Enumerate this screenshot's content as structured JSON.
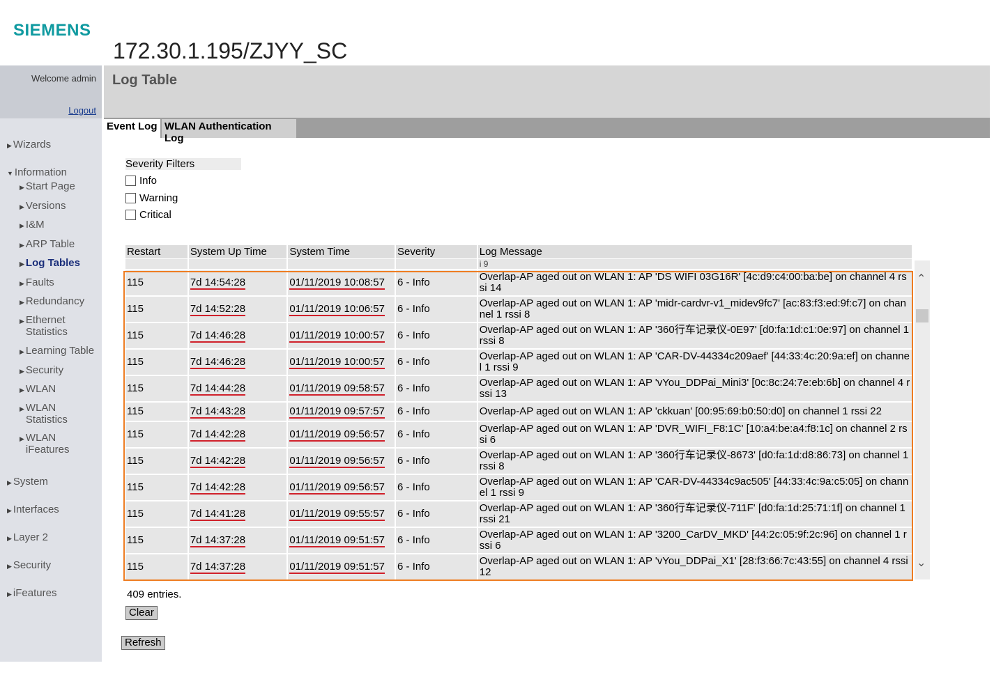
{
  "logo": "SIEMENS",
  "title": "172.30.1.195/ZJYY_SC",
  "sidebar": {
    "welcome": "Welcome admin",
    "logout": "Logout",
    "top": [
      {
        "label": "Wizards"
      },
      {
        "label": "Information"
      },
      {
        "label": "System"
      },
      {
        "label": "Interfaces"
      },
      {
        "label": "Layer 2"
      },
      {
        "label": "Security"
      },
      {
        "label": "iFeatures"
      }
    ],
    "info_items": [
      {
        "label": "Start Page"
      },
      {
        "label": "Versions"
      },
      {
        "label": "I&M"
      },
      {
        "label": "ARP Table"
      },
      {
        "label": "Log Tables"
      },
      {
        "label": "Faults"
      },
      {
        "label": "Redundancy"
      },
      {
        "label": "Ethernet Statistics"
      },
      {
        "label": "Learning Table"
      },
      {
        "label": "Security"
      },
      {
        "label": "WLAN"
      },
      {
        "label": "WLAN Statistics"
      },
      {
        "label": "WLAN iFeatures"
      }
    ]
  },
  "page_title": "Log Table",
  "tabs": [
    {
      "label": "Event Log"
    },
    {
      "label": "WLAN Authentication Log"
    }
  ],
  "filters": {
    "label": "Severity Filters",
    "options": [
      {
        "label": "Info",
        "checked": false
      },
      {
        "label": "Warning",
        "checked": false
      },
      {
        "label": "Critical",
        "checked": false
      }
    ]
  },
  "table": {
    "headers": [
      "Restart",
      "System Up Time",
      "System Time",
      "Severity",
      "Log Message"
    ],
    "partial_row": {
      "message": "i 9"
    },
    "rows": [
      {
        "restart": "115",
        "uptime": "7d 14:54:28",
        "time": "01/11/2019 10:08:57",
        "severity": "6 - Info",
        "message": "Overlap-AP aged out on WLAN 1: AP 'DS WIFI 03G16R' [4c:d9:c4:00:ba:be] on channel 4 rssi 14"
      },
      {
        "restart": "115",
        "uptime": "7d 14:52:28",
        "time": "01/11/2019 10:06:57",
        "severity": "6 - Info",
        "message": "Overlap-AP aged out on WLAN 1: AP 'midr-cardvr-v1_midev9fc7' [ac:83:f3:ed:9f:c7] on channel 1 rssi 8"
      },
      {
        "restart": "115",
        "uptime": "7d 14:46:28",
        "time": "01/11/2019 10:00:57",
        "severity": "6 - Info",
        "message": "Overlap-AP aged out on WLAN 1: AP '360行车记录仪-0E97' [d0:fa:1d:c1:0e:97] on channel 1 rssi 8"
      },
      {
        "restart": "115",
        "uptime": "7d 14:46:28",
        "time": "01/11/2019 10:00:57",
        "severity": "6 - Info",
        "message": "Overlap-AP aged out on WLAN 1: AP 'CAR-DV-44334c209aef' [44:33:4c:20:9a:ef] on channel 1 rssi 9"
      },
      {
        "restart": "115",
        "uptime": "7d 14:44:28",
        "time": "01/11/2019 09:58:57",
        "severity": "6 - Info",
        "message": "Overlap-AP aged out on WLAN 1: AP 'vYou_DDPai_Mini3' [0c:8c:24:7e:eb:6b] on channel 4 rssi 13"
      },
      {
        "restart": "115",
        "uptime": "7d 14:43:28",
        "time": "01/11/2019 09:57:57",
        "severity": "6 - Info",
        "message": "Overlap-AP aged out on WLAN 1: AP 'ckkuan' [00:95:69:b0:50:d0] on channel 1 rssi 22"
      },
      {
        "restart": "115",
        "uptime": "7d 14:42:28",
        "time": "01/11/2019 09:56:57",
        "severity": "6 - Info",
        "message": "Overlap-AP aged out on WLAN 1: AP 'DVR_WIFI_F8:1C' [10:a4:be:a4:f8:1c] on channel 2 rssi 6"
      },
      {
        "restart": "115",
        "uptime": "7d 14:42:28",
        "time": "01/11/2019 09:56:57",
        "severity": "6 - Info",
        "message": "Overlap-AP aged out on WLAN 1: AP '360行车记录仪-8673' [d0:fa:1d:d8:86:73] on channel 1 rssi 8"
      },
      {
        "restart": "115",
        "uptime": "7d 14:42:28",
        "time": "01/11/2019 09:56:57",
        "severity": "6 - Info",
        "message": "Overlap-AP aged out on WLAN 1: AP 'CAR-DV-44334c9ac505' [44:33:4c:9a:c5:05] on channel 1 rssi 9"
      },
      {
        "restart": "115",
        "uptime": "7d 14:41:28",
        "time": "01/11/2019 09:55:57",
        "severity": "6 - Info",
        "message": "Overlap-AP aged out on WLAN 1: AP '360行车记录仪-711F' [d0:fa:1d:25:71:1f] on channel 1 rssi 21"
      },
      {
        "restart": "115",
        "uptime": "7d 14:37:28",
        "time": "01/11/2019 09:51:57",
        "severity": "6 - Info",
        "message": "Overlap-AP aged out on WLAN 1: AP '3200_CarDV_MKD' [44:2c:05:9f:2c:96] on channel 1 rssi 6"
      },
      {
        "restart": "115",
        "uptime": "7d 14:37:28",
        "time": "01/11/2019 09:51:57",
        "severity": "6 - Info",
        "message": "Overlap-AP aged out on WLAN 1: AP 'vYou_DDPai_X1' [28:f3:66:7c:43:55] on channel 4 rssi 12"
      }
    ]
  },
  "entries": "409 entries.",
  "buttons": {
    "clear": "Clear",
    "refresh": "Refresh"
  },
  "colors": {
    "brand": "#0f9aa0",
    "annotation_box": "#ee7d22",
    "annotation_underline": "#d0202a"
  }
}
